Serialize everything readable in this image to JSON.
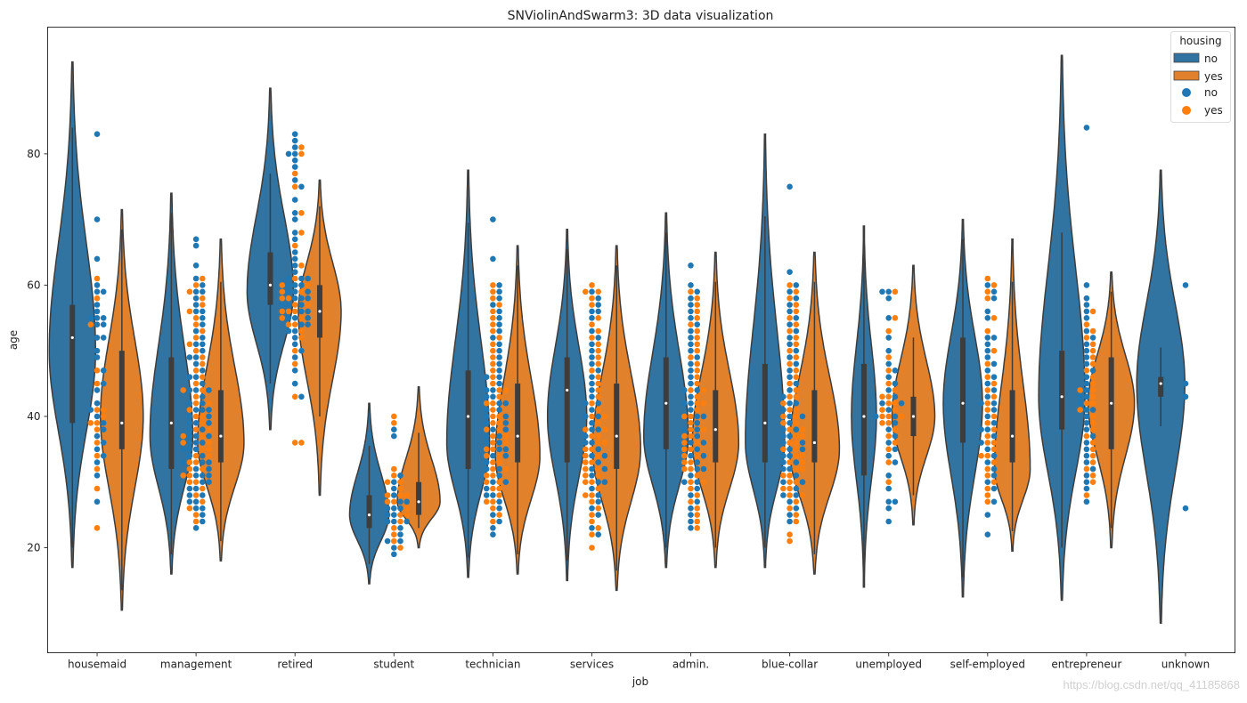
{
  "chart_data": {
    "type": "violin+swarm",
    "title": "SNViolinAndSwarm3: 3D data visualization",
    "xlabel": "job",
    "ylabel": "age",
    "ylim": [
      4,
      99.3
    ],
    "yticks": [
      20,
      40,
      60,
      80
    ],
    "legend": {
      "title": "housing",
      "placement": "top-right",
      "entries": [
        {
          "label": "no",
          "kind": "violin",
          "color": "#3274a1"
        },
        {
          "label": "yes",
          "kind": "violin",
          "color": "#e1812c"
        },
        {
          "label": "no",
          "kind": "point",
          "color": "#1f77b4"
        },
        {
          "label": "yes",
          "kind": "point",
          "color": "#ff7f0e"
        }
      ]
    },
    "colors": {
      "violin_no": "#3274a1",
      "violin_yes": "#e1812c",
      "point_no": "#1f77b4",
      "point_yes": "#ff7f0e",
      "box": "#3d3d3d"
    },
    "categories": [
      "housemaid",
      "management",
      "retired",
      "student",
      "technician",
      "services",
      "admin.",
      "blue-collar",
      "unemployed",
      "self-employed",
      "entrepreneur",
      "unknown"
    ],
    "violins": [
      {
        "job": "housemaid",
        "no": {
          "min": 17,
          "max": 94,
          "q1": 39,
          "median": 52,
          "q3": 57,
          "mode": 50,
          "width": 26
        },
        "yes": {
          "min": 10.5,
          "max": 71.5,
          "q1": 35,
          "median": 39,
          "q3": 50,
          "mode": 40,
          "width": 24
        }
      },
      {
        "job": "management",
        "no": {
          "min": 16,
          "max": 74,
          "q1": 32,
          "median": 39,
          "q3": 49,
          "mode": 37,
          "width": 24
        },
        "yes": {
          "min": 18,
          "max": 67,
          "q1": 33,
          "median": 37,
          "q3": 44,
          "mode": 36,
          "width": 26
        }
      },
      {
        "job": "retired",
        "no": {
          "min": 38,
          "max": 90,
          "q1": 57,
          "median": 60,
          "q3": 65,
          "mode": 59,
          "width": 26
        },
        "yes": {
          "min": 28,
          "max": 76,
          "q1": 52,
          "median": 56,
          "q3": 60,
          "mode": 56,
          "width": 24
        }
      },
      {
        "job": "student",
        "no": {
          "min": 14.5,
          "max": 42,
          "q1": 23,
          "median": 25,
          "q3": 28,
          "mode": 25,
          "width": 22
        },
        "yes": {
          "min": 20,
          "max": 44.5,
          "q1": 25,
          "median": 27,
          "q3": 30,
          "mode": 27,
          "width": 24
        }
      },
      {
        "job": "technician",
        "no": {
          "min": 15.5,
          "max": 77.5,
          "q1": 32,
          "median": 40,
          "q3": 47,
          "mode": 36,
          "width": 24
        },
        "yes": {
          "min": 16,
          "max": 66,
          "q1": 33,
          "median": 37,
          "q3": 45,
          "mode": 34,
          "width": 25
        }
      },
      {
        "job": "services",
        "no": {
          "min": 15,
          "max": 68.5,
          "q1": 33,
          "median": 44,
          "q3": 49,
          "mode": 40,
          "width": 22
        },
        "yes": {
          "min": 13.5,
          "max": 66,
          "q1": 32,
          "median": 37,
          "q3": 45,
          "mode": 35,
          "width": 27
        }
      },
      {
        "job": "admin.",
        "no": {
          "min": 17,
          "max": 71,
          "q1": 35,
          "median": 42,
          "q3": 49,
          "mode": 37,
          "width": 25
        },
        "yes": {
          "min": 17,
          "max": 65,
          "q1": 33,
          "median": 38,
          "q3": 44,
          "mode": 36,
          "width": 26
        }
      },
      {
        "job": "blue-collar",
        "no": {
          "min": 17,
          "max": 83,
          "q1": 33,
          "median": 39,
          "q3": 48,
          "mode": 36,
          "width": 22
        },
        "yes": {
          "min": 16,
          "max": 65,
          "q1": 33,
          "median": 36,
          "q3": 44,
          "mode": 35,
          "width": 28
        }
      },
      {
        "job": "unemployed",
        "no": {
          "min": 14,
          "max": 69,
          "q1": 31,
          "median": 40,
          "q3": 48,
          "mode": 40,
          "width": 14
        },
        "yes": {
          "min": 23.5,
          "max": 63,
          "q1": 37,
          "median": 40,
          "q3": 43,
          "mode": 40,
          "width": 24
        }
      },
      {
        "job": "self-employed",
        "no": {
          "min": 12.5,
          "max": 70,
          "q1": 36,
          "median": 42,
          "q3": 52,
          "mode": 42,
          "width": 22
        },
        "yes": {
          "min": 19.5,
          "max": 67,
          "q1": 33,
          "median": 37,
          "q3": 44,
          "mode": 32,
          "width": 20
        }
      },
      {
        "job": "entrepreneur",
        "no": {
          "min": 12,
          "max": 95,
          "q1": 38,
          "median": 43,
          "q3": 50,
          "mode": 43,
          "width": 26
        },
        "yes": {
          "min": 20,
          "max": 62,
          "q1": 35,
          "median": 42,
          "q3": 49,
          "mode": 42,
          "width": 26
        }
      },
      {
        "job": "unknown",
        "no": {
          "min": 8.5,
          "max": 77.5,
          "q1": 43,
          "median": 45,
          "q3": 46,
          "mode": 45,
          "width": 27
        },
        "yes": null
      }
    ],
    "points": [
      {
        "job": "housemaid",
        "no": [
          83,
          70,
          64,
          60,
          59,
          59,
          56,
          55,
          55,
          54,
          54,
          52,
          52,
          50,
          49,
          47,
          45,
          44,
          42,
          41,
          40,
          39,
          38,
          37,
          36,
          35,
          34,
          33,
          31,
          27,
          55,
          57
        ],
        "yes": [
          61,
          58,
          54,
          45,
          41,
          41,
          39,
          39,
          38,
          36,
          34,
          32,
          29,
          23,
          40,
          47
        ]
      },
      {
        "job": "management",
        "no": [
          67,
          66,
          63,
          61,
          60,
          59,
          59,
          58,
          57,
          56,
          56,
          55,
          54,
          53,
          52,
          51,
          51,
          50,
          49,
          49,
          48,
          47,
          46,
          46,
          45,
          44,
          44,
          43,
          42,
          41,
          41,
          40,
          39,
          39,
          38,
          37,
          37,
          36,
          36,
          35,
          35,
          34,
          33,
          33,
          32,
          32,
          31,
          31,
          30,
          30,
          29,
          29,
          28,
          28,
          27,
          27,
          26,
          26,
          25,
          24,
          23,
          34,
          36,
          38,
          40,
          42,
          44,
          31,
          33,
          35,
          37,
          39,
          41
        ],
        "yes": [
          61,
          60,
          59,
          58,
          57,
          56,
          55,
          54,
          53,
          52,
          51,
          50,
          49,
          48,
          47,
          46,
          45,
          44,
          43,
          42,
          41,
          40,
          39,
          38,
          37,
          36,
          35,
          34,
          33,
          32,
          31,
          30,
          29,
          28,
          27,
          26,
          25,
          24,
          38,
          36,
          34,
          32,
          30,
          40,
          42,
          44,
          35,
          37,
          33,
          31
        ]
      },
      {
        "job": "retired",
        "no": [
          83,
          82,
          81,
          80,
          80,
          79,
          78,
          76,
          75,
          73,
          71,
          70,
          68,
          67,
          65,
          64,
          63,
          62,
          61,
          61,
          60,
          60,
          59,
          59,
          58,
          58,
          57,
          57,
          56,
          56,
          55,
          55,
          54,
          54,
          53,
          53,
          52,
          51,
          50,
          49,
          47,
          45,
          43,
          61,
          59,
          57,
          55,
          58,
          60
        ],
        "yes": [
          81,
          80,
          77,
          75,
          71,
          68,
          66,
          63,
          61,
          60,
          59,
          59,
          58,
          57,
          57,
          56,
          56,
          55,
          55,
          54,
          54,
          53,
          52,
          50,
          48,
          43,
          36,
          36,
          58,
          60,
          56
        ]
      },
      {
        "job": "student",
        "no": [
          38,
          37,
          31,
          30,
          29,
          28,
          27,
          27,
          26,
          26,
          25,
          25,
          24,
          24,
          23,
          22,
          21,
          21,
          20,
          19,
          24,
          26
        ],
        "yes": [
          40,
          39,
          32,
          31,
          30,
          29,
          28,
          28,
          27,
          27,
          26,
          25,
          25,
          24,
          23,
          22,
          21,
          20,
          30,
          28
        ]
      },
      {
        "job": "technician",
        "no": [
          70,
          64,
          60,
          59,
          58,
          57,
          56,
          55,
          54,
          53,
          52,
          51,
          50,
          49,
          48,
          47,
          46,
          45,
          44,
          43,
          42,
          41,
          40,
          39,
          38,
          37,
          36,
          35,
          34,
          33,
          32,
          31,
          30,
          29,
          28,
          27,
          26,
          25,
          24,
          23,
          22,
          46,
          44,
          42,
          40,
          38,
          36,
          34,
          32,
          30,
          28,
          35,
          37,
          39,
          41,
          43
        ],
        "yes": [
          60,
          59,
          58,
          57,
          56,
          55,
          54,
          53,
          52,
          51,
          50,
          49,
          48,
          47,
          46,
          45,
          44,
          43,
          42,
          41,
          40,
          39,
          38,
          37,
          36,
          35,
          34,
          33,
          32,
          31,
          30,
          29,
          28,
          27,
          26,
          25,
          24,
          36,
          34,
          32,
          30,
          38,
          40,
          42,
          44,
          33,
          35,
          37,
          39,
          31,
          29,
          27
        ]
      },
      {
        "job": "services",
        "no": [
          59,
          58,
          57,
          56,
          56,
          55,
          53,
          52,
          51,
          50,
          49,
          48,
          47,
          46,
          45,
          44,
          43,
          42,
          41,
          40,
          39,
          38,
          37,
          36,
          35,
          34,
          33,
          32,
          31,
          30,
          29,
          28,
          27,
          26,
          25,
          23,
          22,
          36,
          38,
          40,
          42,
          34,
          32,
          30
        ],
        "yes": [
          60,
          59,
          59,
          58,
          57,
          55,
          54,
          53,
          52,
          51,
          50,
          49,
          48,
          47,
          46,
          45,
          44,
          43,
          42,
          41,
          40,
          39,
          38,
          37,
          36,
          35,
          34,
          33,
          32,
          31,
          30,
          29,
          28,
          27,
          26,
          25,
          24,
          23,
          22,
          20,
          36,
          34,
          38,
          32,
          30,
          40,
          28,
          35,
          33,
          31,
          37
        ]
      },
      {
        "job": "admin.",
        "no": [
          63,
          60,
          59,
          58,
          57,
          56,
          55,
          54,
          53,
          52,
          51,
          50,
          49,
          48,
          47,
          46,
          45,
          44,
          43,
          42,
          41,
          40,
          39,
          38,
          37,
          36,
          35,
          34,
          33,
          32,
          31,
          30,
          29,
          28,
          27,
          26,
          25,
          24,
          23,
          40,
          38,
          36,
          34,
          42,
          44,
          32,
          30
        ],
        "yes": [
          59,
          58,
          57,
          56,
          55,
          54,
          53,
          52,
          51,
          50,
          49,
          48,
          47,
          46,
          45,
          44,
          43,
          42,
          41,
          40,
          39,
          38,
          37,
          36,
          35,
          34,
          33,
          32,
          31,
          30,
          29,
          28,
          27,
          26,
          25,
          24,
          23,
          38,
          36,
          34,
          40,
          32,
          30,
          42,
          44,
          35,
          37,
          33
        ]
      },
      {
        "job": "blue-collar",
        "no": [
          75,
          62,
          60,
          59,
          58,
          57,
          56,
          55,
          54,
          53,
          52,
          51,
          50,
          49,
          48,
          47,
          46,
          45,
          44,
          43,
          42,
          41,
          40,
          39,
          38,
          37,
          36,
          35,
          34,
          33,
          32,
          31,
          30,
          29,
          28,
          27,
          26,
          25,
          24,
          38,
          36,
          34,
          40,
          32,
          30,
          42,
          28,
          35,
          37,
          33
        ],
        "yes": [
          60,
          59,
          58,
          57,
          56,
          55,
          54,
          53,
          52,
          51,
          50,
          49,
          48,
          47,
          46,
          45,
          44,
          43,
          42,
          41,
          40,
          39,
          38,
          37,
          36,
          35,
          34,
          33,
          32,
          31,
          30,
          29,
          28,
          27,
          26,
          25,
          24,
          22,
          21,
          36,
          34,
          38,
          32,
          30,
          40,
          35,
          33,
          37,
          31,
          29,
          39,
          41,
          43,
          28
        ]
      },
      {
        "job": "unemployed",
        "no": [
          59,
          59,
          58,
          55,
          52,
          50,
          48,
          47,
          46,
          45,
          44,
          43,
          42,
          41,
          40,
          39,
          38,
          37,
          36,
          35,
          34,
          33,
          31,
          29,
          27,
          27,
          26,
          24,
          40,
          42
        ],
        "yes": [
          59,
          55,
          53,
          49,
          47,
          45,
          44,
          43,
          42,
          41,
          40,
          40,
          39,
          39,
          38,
          37,
          36,
          35,
          33,
          30,
          41,
          43,
          42,
          40
        ]
      },
      {
        "job": "self-employed",
        "no": [
          60,
          59,
          58,
          56,
          55,
          52,
          52,
          51,
          50,
          49,
          48,
          47,
          46,
          45,
          44,
          43,
          42,
          41,
          40,
          39,
          38,
          37,
          36,
          35,
          34,
          33,
          32,
          31,
          30,
          29,
          27,
          25,
          22,
          42,
          38
        ],
        "yes": [
          61,
          60,
          59,
          58,
          55,
          53,
          50,
          48,
          46,
          45,
          44,
          43,
          42,
          41,
          40,
          39,
          38,
          37,
          36,
          35,
          34,
          33,
          32,
          31,
          30,
          29,
          28,
          27,
          36,
          34
        ]
      },
      {
        "job": "entrepreneur",
        "no": [
          84,
          60,
          58,
          57,
          56,
          55,
          53,
          52,
          51,
          50,
          49,
          48,
          47,
          46,
          45,
          44,
          43,
          42,
          41,
          40,
          39,
          38,
          37,
          36,
          35,
          34,
          33,
          32,
          31,
          30,
          29,
          27,
          43,
          41
        ],
        "yes": [
          56,
          54,
          53,
          52,
          51,
          50,
          49,
          48,
          47,
          46,
          45,
          44,
          43,
          42,
          41,
          40,
          39,
          38,
          37,
          36,
          35,
          34,
          33,
          32,
          31,
          30,
          28,
          42,
          44
        ]
      },
      {
        "job": "unknown",
        "no": [
          60,
          45,
          43,
          26
        ],
        "yes": []
      }
    ],
    "watermark": "https://blog.csdn.net/qq_41185868"
  }
}
